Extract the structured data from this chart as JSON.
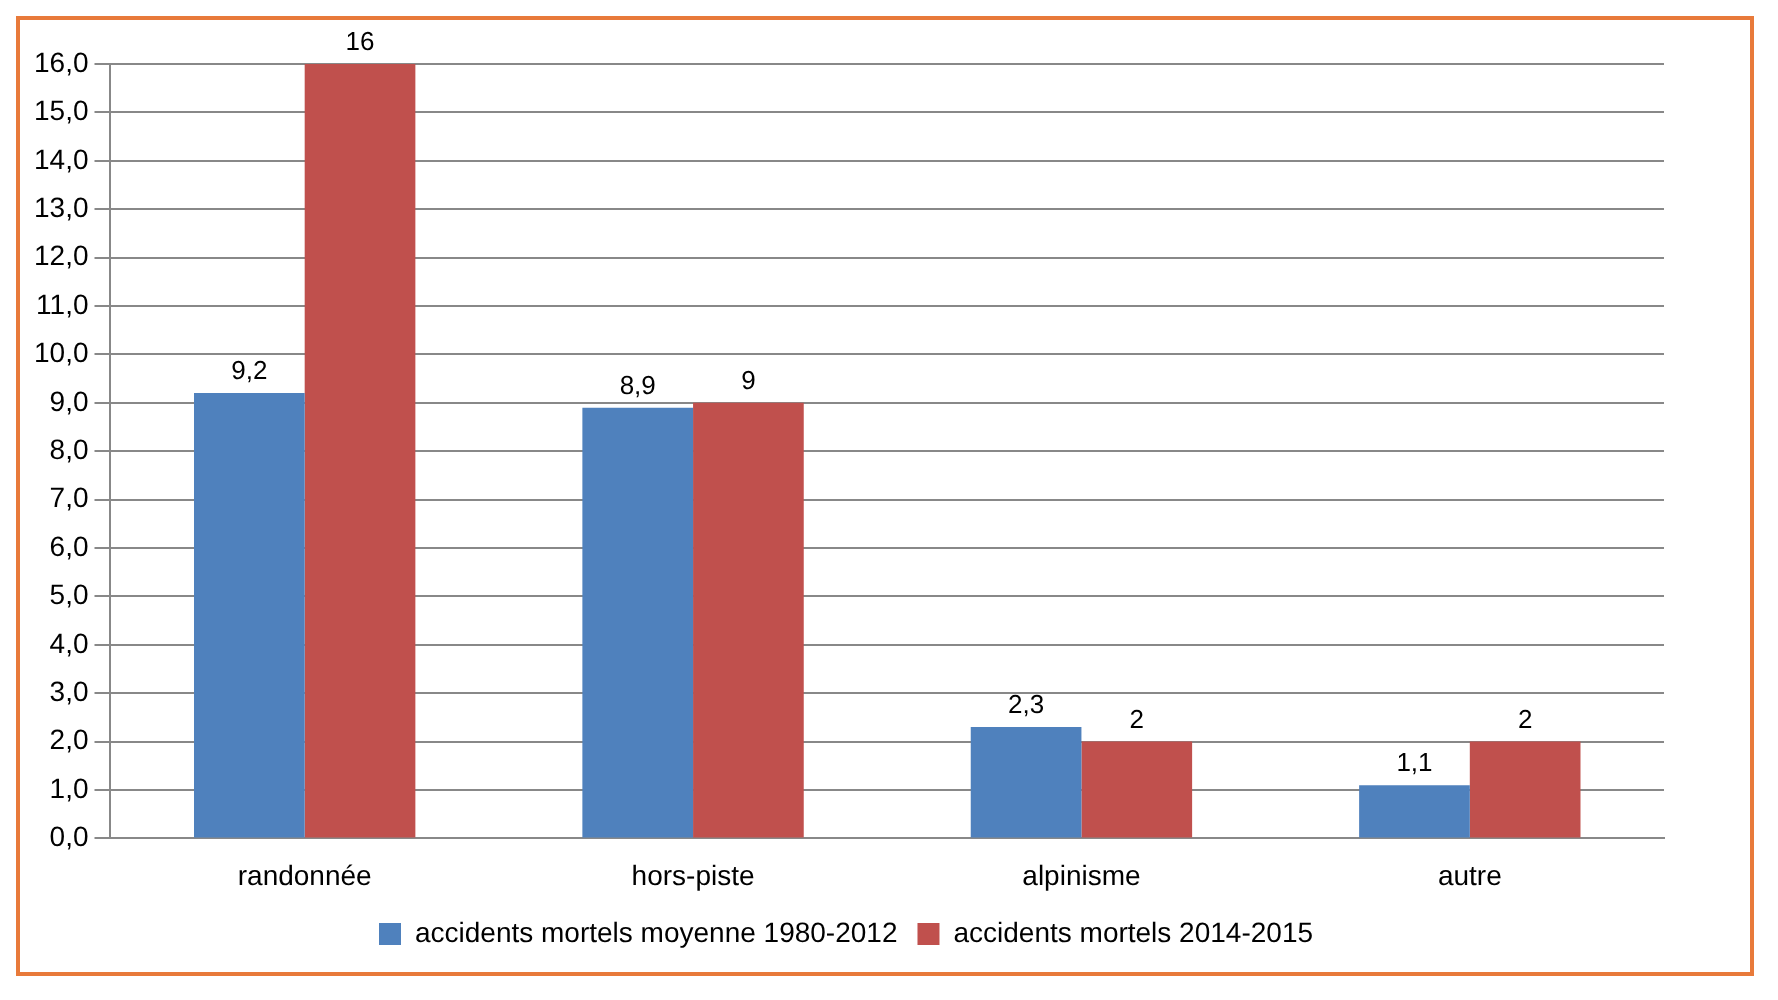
{
  "chart_data": {
    "type": "bar",
    "categories": [
      "randonnée",
      "hors-piste",
      "alpinisme",
      "autre"
    ],
    "series": [
      {
        "name": "accidents mortels moyenne 1980-2012",
        "color": "#4f81bd",
        "values": [
          9.2,
          8.9,
          2.3,
          1.1
        ],
        "value_labels": [
          "9,2",
          "8,9",
          "2,3",
          "1,1"
        ]
      },
      {
        "name": "accidents mortels 2014-2015",
        "color": "#c0504d",
        "values": [
          16,
          9,
          2,
          2
        ],
        "value_labels": [
          "16",
          "9",
          "2",
          "2"
        ]
      }
    ],
    "ylim": [
      0,
      16
    ],
    "yticks": [
      {
        "value": 0,
        "label": "0,0"
      },
      {
        "value": 1,
        "label": "1,0"
      },
      {
        "value": 2,
        "label": "2,0"
      },
      {
        "value": 3,
        "label": "3,0"
      },
      {
        "value": 4,
        "label": "4,0"
      },
      {
        "value": 5,
        "label": "5,0"
      },
      {
        "value": 6,
        "label": "6,0"
      },
      {
        "value": 7,
        "label": "7,0"
      },
      {
        "value": 8,
        "label": "8,0"
      },
      {
        "value": 9,
        "label": "9,0"
      },
      {
        "value": 10,
        "label": "10,0"
      },
      {
        "value": 11,
        "label": "11,0"
      },
      {
        "value": 12,
        "label": "12,0"
      },
      {
        "value": 13,
        "label": "13,0"
      },
      {
        "value": 14,
        "label": "14,0"
      },
      {
        "value": 15,
        "label": "15,0"
      },
      {
        "value": 16,
        "label": "16,0"
      }
    ],
    "grid": "y",
    "legend": "bottom"
  }
}
